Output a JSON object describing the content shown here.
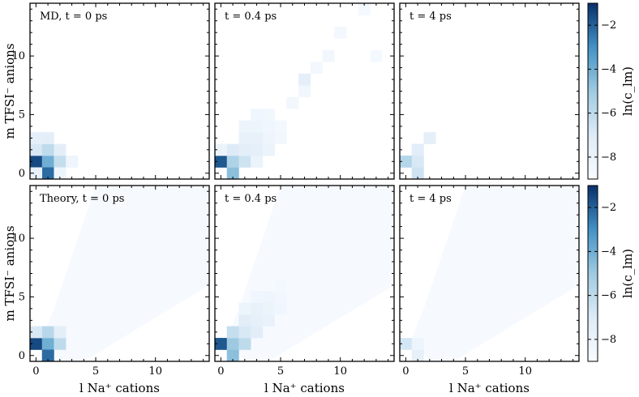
{
  "chart_data": {
    "type": "heatmap",
    "xlabel": "l Na⁺ cations",
    "ylabel": "m TFSI⁻ anions",
    "xlim": [
      -0.5,
      14.5
    ],
    "ylim": [
      -0.5,
      14.5
    ],
    "xticks": [
      0,
      5,
      10
    ],
    "yticks": [
      0,
      5,
      10
    ],
    "colorbar": {
      "label": "ln(c_lm)",
      "range": [
        -9,
        -1
      ],
      "ticks": [
        -2,
        -4,
        -6,
        -8
      ],
      "tick_labels": [
        "−2",
        "−4",
        "−6",
        "−8"
      ],
      "colormap": "Blues"
    },
    "rows": [
      {
        "name": "MD",
        "ylabel": "m TFSI⁻ anions"
      },
      {
        "name": "Theory",
        "ylabel": "m TFSI⁻ anions"
      }
    ],
    "panels": [
      {
        "row": 0,
        "col": 0,
        "label": "MD, t = 0 ps",
        "cells": [
          [
            0,
            1,
            -1.5
          ],
          [
            1,
            1,
            -4.0
          ],
          [
            1,
            0,
            -2.2
          ],
          [
            0,
            2,
            -6.8
          ],
          [
            1,
            2,
            -6.0
          ],
          [
            2,
            1,
            -6.2
          ],
          [
            2,
            2,
            -7.4
          ],
          [
            0,
            3,
            -7.5
          ],
          [
            1,
            3,
            -7.4
          ],
          [
            3,
            1,
            -8.3
          ],
          [
            2,
            0,
            -8.2
          ],
          [
            0,
            0,
            -7.8
          ]
        ]
      },
      {
        "row": 0,
        "col": 1,
        "label": "t = 0.4 ps",
        "cells": [
          [
            0,
            1,
            -1.8
          ],
          [
            1,
            0,
            -4.6
          ],
          [
            1,
            1,
            -5.5
          ],
          [
            1,
            2,
            -7.0
          ],
          [
            2,
            1,
            -6.5
          ],
          [
            2,
            2,
            -7.4
          ],
          [
            3,
            1,
            -8.0
          ],
          [
            2,
            3,
            -7.8
          ],
          [
            3,
            2,
            -7.5
          ],
          [
            3,
            3,
            -7.8
          ],
          [
            4,
            2,
            -8.0
          ],
          [
            3,
            4,
            -8.2
          ],
          [
            4,
            3,
            -8.3
          ],
          [
            2,
            4,
            -8.2
          ],
          [
            4,
            4,
            -8.4
          ],
          [
            5,
            3,
            -8.5
          ],
          [
            3,
            5,
            -8.4
          ],
          [
            4,
            5,
            -8.5
          ],
          [
            5,
            4,
            -8.6
          ],
          [
            0,
            2,
            -8.1
          ],
          [
            6,
            6,
            -8.5
          ],
          [
            7,
            7,
            -8.5
          ],
          [
            7,
            8,
            -7.5
          ],
          [
            8,
            9,
            -8.6
          ],
          [
            9,
            10,
            -8.5
          ],
          [
            10,
            12,
            -8.6
          ],
          [
            12,
            14,
            -8.7
          ],
          [
            13,
            10,
            -8.7
          ]
        ]
      },
      {
        "row": 0,
        "col": 2,
        "label": "t = 4 ps",
        "cells": [
          [
            0,
            1,
            -5.7
          ],
          [
            1,
            0,
            -6.5
          ],
          [
            1,
            1,
            -6.8
          ],
          [
            1,
            2,
            -7.2
          ],
          [
            2,
            3,
            -7.5
          ]
        ]
      },
      {
        "row": 1,
        "col": 0,
        "label": "Theory, t = 0 ps",
        "cells": [
          [
            0,
            1,
            -1.5
          ],
          [
            1,
            1,
            -4.0
          ],
          [
            1,
            0,
            -2.2
          ],
          [
            1,
            2,
            -5.8
          ],
          [
            0,
            2,
            -6.8
          ],
          [
            2,
            1,
            -6.0
          ],
          [
            2,
            2,
            -7.4
          ]
        ],
        "background_level": -8.9
      },
      {
        "row": 1,
        "col": 1,
        "label": "t = 0.4 ps",
        "cells": [
          [
            0,
            1,
            -1.8
          ],
          [
            1,
            0,
            -4.6
          ],
          [
            1,
            1,
            -5.0
          ],
          [
            1,
            2,
            -6.2
          ],
          [
            2,
            1,
            -6.0
          ],
          [
            2,
            2,
            -6.8
          ],
          [
            3,
            2,
            -7.3
          ],
          [
            2,
            3,
            -7.3
          ],
          [
            3,
            3,
            -7.6
          ],
          [
            3,
            4,
            -7.8
          ],
          [
            4,
            3,
            -7.9
          ],
          [
            4,
            4,
            -8.1
          ],
          [
            4,
            5,
            -8.3
          ],
          [
            5,
            4,
            -8.4
          ],
          [
            5,
            5,
            -8.5
          ],
          [
            2,
            4,
            -8.2
          ],
          [
            3,
            5,
            -8.4
          ],
          [
            5,
            6,
            -8.6
          ]
        ],
        "background_level": -8.9
      },
      {
        "row": 1,
        "col": 2,
        "label": "t = 4 ps",
        "cells": [
          [
            0,
            1,
            -6.7
          ],
          [
            1,
            0,
            -7.6
          ],
          [
            1,
            1,
            -8.2
          ]
        ],
        "background_level": -8.9
      }
    ]
  }
}
